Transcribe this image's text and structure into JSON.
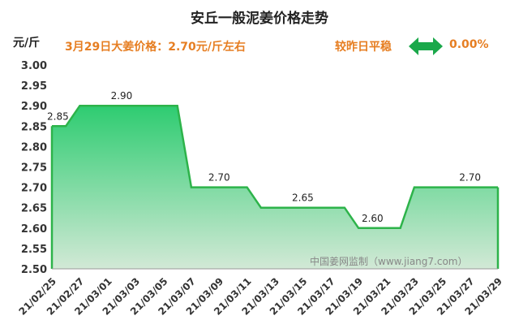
{
  "header": {
    "title": "安丘一般泥姜价格走势",
    "unit": "元/斤",
    "price_note": "3月29日大姜价格：2.70元/斤左右",
    "trend_label": "较昨日平稳",
    "trend_icon": "left-right-arrow-icon",
    "change": "0.00%"
  },
  "watermark": "中国姜网监制（www.jiang7.com）",
  "colors": {
    "accent": "#e67e22",
    "line": "#2db34a",
    "fill_top": "#2ecc71",
    "fill_bottom": "#cfe8d4"
  },
  "chart_data": {
    "type": "area",
    "title": "安丘一般泥姜价格走势",
    "ylabel": "元/斤",
    "ylim": [
      2.5,
      3.0
    ],
    "yticks": [
      "2.50",
      "2.55",
      "2.60",
      "2.65",
      "2.70",
      "2.75",
      "2.80",
      "2.85",
      "2.90",
      "2.95",
      "3.00"
    ],
    "x": [
      "21/02/25",
      "21/02/26",
      "21/02/27",
      "21/02/28",
      "21/03/01",
      "21/03/02",
      "21/03/03",
      "21/03/04",
      "21/03/05",
      "21/03/06",
      "21/03/07",
      "21/03/08",
      "21/03/09",
      "21/03/10",
      "21/03/11",
      "21/03/12",
      "21/03/13",
      "21/03/14",
      "21/03/15",
      "21/03/16",
      "21/03/17",
      "21/03/18",
      "21/03/19",
      "21/03/20",
      "21/03/21",
      "21/03/22",
      "21/03/23",
      "21/03/24",
      "21/03/25",
      "21/03/26",
      "21/03/27",
      "21/03/28",
      "21/03/29"
    ],
    "xtick_labels": [
      "21/02/25",
      "21/02/27",
      "21/03/01",
      "21/03/03",
      "21/03/05",
      "21/03/07",
      "21/03/09",
      "21/03/11",
      "21/03/13",
      "21/03/15",
      "21/03/17",
      "21/03/19",
      "21/03/21",
      "21/03/23",
      "21/03/25",
      "21/03/27",
      "21/03/29"
    ],
    "values": [
      2.85,
      2.85,
      2.9,
      2.9,
      2.9,
      2.9,
      2.9,
      2.9,
      2.9,
      2.9,
      2.7,
      2.7,
      2.7,
      2.7,
      2.7,
      2.65,
      2.65,
      2.65,
      2.65,
      2.65,
      2.65,
      2.65,
      2.6,
      2.6,
      2.6,
      2.6,
      2.7,
      2.7,
      2.7,
      2.7,
      2.7,
      2.7,
      2.7
    ],
    "data_labels": [
      {
        "x": "21/02/25",
        "text": "2.85"
      },
      {
        "x": "21/03/02",
        "text": "2.90"
      },
      {
        "x": "21/03/09",
        "text": "2.70"
      },
      {
        "x": "21/03/15",
        "text": "2.65"
      },
      {
        "x": "21/03/20",
        "text": "2.60"
      },
      {
        "x": "21/03/27",
        "text": "2.70"
      }
    ],
    "grid": false,
    "legend": "none"
  }
}
